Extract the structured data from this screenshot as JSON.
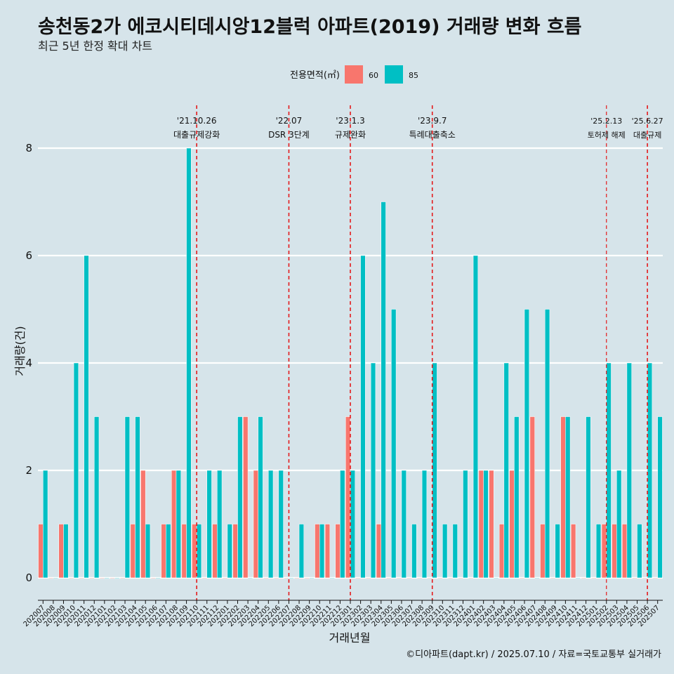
{
  "header": {
    "title": "송천동2가 에코시티데시앙12블럭 아파트(2019) 거래량 변화 흐름",
    "subtitle": "최근 5년 한정 확대 차트"
  },
  "caption": "©디아파트(dapt.kr) / 2025.07.10 / 자료=국토교통부 실거래가",
  "colors": {
    "s60": "#f8766d",
    "s85": "#00bfc4",
    "background": "#d6e4ea",
    "annotation_line": "#e41a1c"
  },
  "chart_data": {
    "type": "bar",
    "xlabel": "거래년월",
    "ylabel": "거래량(건)",
    "ylim": [
      0,
      8
    ],
    "yticks": [
      0,
      2,
      4,
      6,
      8
    ],
    "grid": true,
    "legend": {
      "title": "전용면적(㎡)",
      "placement": "top",
      "entries": [
        "60",
        "85"
      ]
    },
    "categories": [
      "202007",
      "202008",
      "202009",
      "202010",
      "202011",
      "202012",
      "202101",
      "202102",
      "202103",
      "202104",
      "202105",
      "202106",
      "202107",
      "202108",
      "202109",
      "202110",
      "202111",
      "202112",
      "202201",
      "202202",
      "202203",
      "202204",
      "202205",
      "202206",
      "202207",
      "202208",
      "202209",
      "202210",
      "202211",
      "202212",
      "202301",
      "202302",
      "202303",
      "202304",
      "202305",
      "202306",
      "202307",
      "202308",
      "202309",
      "202310",
      "202311",
      "202312",
      "202401",
      "202402",
      "202403",
      "202404",
      "202405",
      "202406",
      "202407",
      "202408",
      "202409",
      "202410",
      "202411",
      "202412",
      "202501",
      "202502",
      "202503",
      "202504",
      "202505",
      "202506",
      "202507"
    ],
    "series": [
      {
        "name": "60",
        "values": [
          1,
          0,
          1,
          0,
          0,
          0,
          0,
          0,
          0,
          1,
          2,
          0,
          1,
          2,
          1,
          1,
          0,
          1,
          0,
          1,
          3,
          2,
          0,
          0,
          0,
          0,
          0,
          1,
          1,
          1,
          3,
          0,
          0,
          1,
          0,
          0,
          0,
          0,
          0,
          0,
          0,
          0,
          0,
          2,
          2,
          1,
          2,
          0,
          3,
          1,
          0,
          3,
          1,
          0,
          0,
          1,
          1,
          1,
          0,
          0,
          0
        ]
      },
      {
        "name": "85",
        "values": [
          2,
          0,
          1,
          4,
          6,
          3,
          0,
          0,
          3,
          3,
          1,
          0,
          1,
          2,
          8,
          1,
          2,
          2,
          1,
          3,
          0,
          3,
          2,
          2,
          0,
          1,
          0,
          1,
          0,
          2,
          2,
          6,
          4,
          7,
          5,
          2,
          1,
          2,
          4,
          1,
          1,
          2,
          6,
          2,
          0,
          4,
          3,
          5,
          0,
          5,
          1,
          3,
          0,
          3,
          1,
          4,
          2,
          4,
          1,
          4,
          3
        ]
      }
    ],
    "annotations": [
      {
        "date": "'21.10.26",
        "label": "대출규제강화",
        "month": "202110"
      },
      {
        "date": "'22.07",
        "label": "DSR 3단계",
        "month": "202207"
      },
      {
        "date": "'23.1.3",
        "label": "규제완화",
        "month": "202301"
      },
      {
        "date": "'23.9.7",
        "label": "특례대출축소",
        "month": "202309"
      },
      {
        "date": "'25.2.13",
        "label": "토허제 해제",
        "month": "202502"
      },
      {
        "date": "'25.6.27",
        "label": "대출규제",
        "month": "202506"
      }
    ]
  }
}
